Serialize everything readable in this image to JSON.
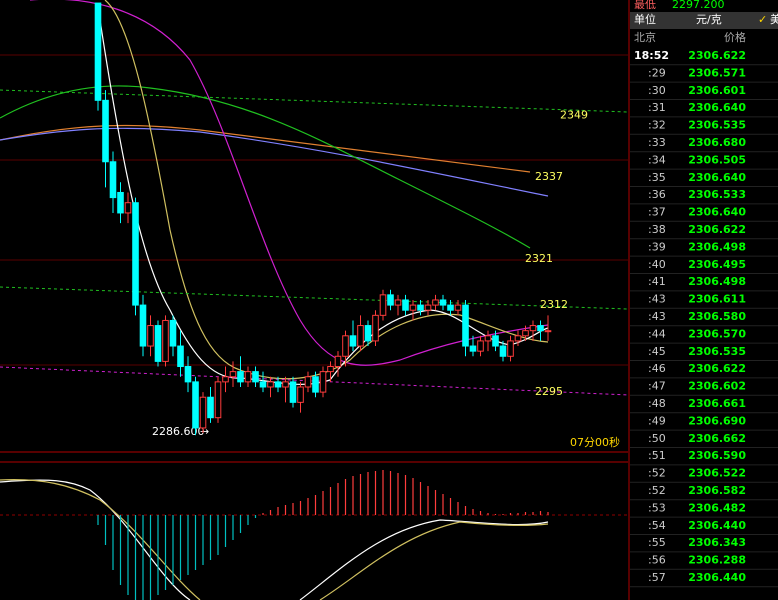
{
  "chart": {
    "ylim": [
      2283.3,
      2371.6
    ],
    "levels": [
      2349,
      2337,
      2321,
      2312,
      2295
    ],
    "low_label": {
      "value": 2286.6,
      "label": "2286.600"
    },
    "timer": "07分00秒",
    "candles": [
      {
        "o": 2371,
        "h": 2371,
        "l": 2350,
        "c": 2352
      },
      {
        "o": 2352,
        "h": 2354,
        "l": 2335,
        "c": 2340
      },
      {
        "o": 2340,
        "h": 2342,
        "l": 2330,
        "c": 2333
      },
      {
        "o": 2334,
        "h": 2336,
        "l": 2328,
        "c": 2330
      },
      {
        "o": 2330,
        "h": 2334,
        "l": 2328,
        "c": 2332
      },
      {
        "o": 2332,
        "h": 2333,
        "l": 2310,
        "c": 2312
      },
      {
        "o": 2312,
        "h": 2314,
        "l": 2302,
        "c": 2304
      },
      {
        "o": 2304,
        "h": 2310,
        "l": 2302,
        "c": 2308
      },
      {
        "o": 2308,
        "h": 2309,
        "l": 2300,
        "c": 2301
      },
      {
        "o": 2301,
        "h": 2310,
        "l": 2300,
        "c": 2309
      },
      {
        "o": 2309,
        "h": 2310,
        "l": 2302,
        "c": 2304
      },
      {
        "o": 2304,
        "h": 2307,
        "l": 2298,
        "c": 2300
      },
      {
        "o": 2300,
        "h": 2302,
        "l": 2295,
        "c": 2297
      },
      {
        "o": 2297,
        "h": 2298,
        "l": 2286.6,
        "c": 2288
      },
      {
        "o": 2288,
        "h": 2295,
        "l": 2287,
        "c": 2294
      },
      {
        "o": 2294,
        "h": 2296,
        "l": 2289,
        "c": 2290
      },
      {
        "o": 2290,
        "h": 2298,
        "l": 2289,
        "c": 2297
      },
      {
        "o": 2297,
        "h": 2300,
        "l": 2295,
        "c": 2298
      },
      {
        "o": 2298,
        "h": 2301,
        "l": 2296,
        "c": 2299
      },
      {
        "o": 2299,
        "h": 2302,
        "l": 2296,
        "c": 2297
      },
      {
        "o": 2297,
        "h": 2300,
        "l": 2296,
        "c": 2299
      },
      {
        "o": 2299,
        "h": 2300,
        "l": 2296,
        "c": 2297
      },
      {
        "o": 2297,
        "h": 2299,
        "l": 2295,
        "c": 2296
      },
      {
        "o": 2296,
        "h": 2298,
        "l": 2294,
        "c": 2297
      },
      {
        "o": 2297,
        "h": 2298,
        "l": 2295,
        "c": 2296
      },
      {
        "o": 2296,
        "h": 2298,
        "l": 2293,
        "c": 2297
      },
      {
        "o": 2297,
        "h": 2298,
        "l": 2292,
        "c": 2293
      },
      {
        "o": 2293,
        "h": 2297,
        "l": 2291,
        "c": 2296
      },
      {
        "o": 2296,
        "h": 2299,
        "l": 2295,
        "c": 2298
      },
      {
        "o": 2298,
        "h": 2299,
        "l": 2294,
        "c": 2295
      },
      {
        "o": 2295,
        "h": 2300,
        "l": 2294,
        "c": 2299
      },
      {
        "o": 2299,
        "h": 2301,
        "l": 2297,
        "c": 2300
      },
      {
        "o": 2300,
        "h": 2303,
        "l": 2298,
        "c": 2302
      },
      {
        "o": 2302,
        "h": 2307,
        "l": 2300,
        "c": 2306
      },
      {
        "o": 2306,
        "h": 2309,
        "l": 2303,
        "c": 2304
      },
      {
        "o": 2304,
        "h": 2310,
        "l": 2303,
        "c": 2308
      },
      {
        "o": 2308,
        "h": 2309,
        "l": 2304,
        "c": 2305
      },
      {
        "o": 2305,
        "h": 2311,
        "l": 2304,
        "c": 2310
      },
      {
        "o": 2310,
        "h": 2315,
        "l": 2309,
        "c": 2314
      },
      {
        "o": 2314,
        "h": 2315,
        "l": 2311,
        "c": 2312
      },
      {
        "o": 2312,
        "h": 2314,
        "l": 2310,
        "c": 2313
      },
      {
        "o": 2313,
        "h": 2314,
        "l": 2310,
        "c": 2311
      },
      {
        "o": 2311,
        "h": 2313,
        "l": 2309,
        "c": 2312
      },
      {
        "o": 2312,
        "h": 2313,
        "l": 2310,
        "c": 2311
      },
      {
        "o": 2311,
        "h": 2313,
        "l": 2310,
        "c": 2312
      },
      {
        "o": 2312,
        "h": 2314,
        "l": 2311,
        "c": 2313
      },
      {
        "o": 2313,
        "h": 2314,
        "l": 2311,
        "c": 2312
      },
      {
        "o": 2312,
        "h": 2313,
        "l": 2310,
        "c": 2311
      },
      {
        "o": 2311,
        "h": 2313,
        "l": 2310,
        "c": 2312
      },
      {
        "o": 2312,
        "h": 2313,
        "l": 2302,
        "c": 2304
      },
      {
        "o": 2304,
        "h": 2306,
        "l": 2302,
        "c": 2303
      },
      {
        "o": 2303,
        "h": 2306,
        "l": 2302,
        "c": 2305
      },
      {
        "o": 2305,
        "h": 2307,
        "l": 2303,
        "c": 2306
      },
      {
        "o": 2306,
        "h": 2307,
        "l": 2303,
        "c": 2304
      },
      {
        "o": 2304,
        "h": 2305,
        "l": 2301,
        "c": 2302
      },
      {
        "o": 2302,
        "h": 2306,
        "l": 2301,
        "c": 2305
      },
      {
        "o": 2305,
        "h": 2307,
        "l": 2304,
        "c": 2306
      },
      {
        "o": 2306,
        "h": 2308,
        "l": 2305,
        "c": 2307
      },
      {
        "o": 2307,
        "h": 2309,
        "l": 2305,
        "c": 2308
      },
      {
        "o": 2308,
        "h": 2309,
        "l": 2305,
        "c": 2307
      },
      {
        "o": 2307,
        "h": 2310,
        "l": 2305,
        "c": 2307
      }
    ],
    "macd": {
      "ylim": [
        -85,
        60
      ],
      "values": [
        -10,
        -30,
        -55,
        -70,
        -80,
        -85,
        -88,
        -85,
        -80,
        -75,
        -70,
        -65,
        -60,
        -55,
        -50,
        -45,
        -40,
        -32,
        -25,
        -18,
        -10,
        -3,
        2,
        5,
        8,
        10,
        12,
        14,
        17,
        20,
        24,
        28,
        32,
        36,
        39,
        41,
        43,
        44,
        45,
        44,
        42,
        40,
        37,
        33,
        29,
        25,
        21,
        17,
        13,
        9,
        6,
        4,
        2,
        1,
        1,
        2,
        2,
        3,
        3,
        4,
        3
      ]
    }
  },
  "panel": {
    "low_label": "最低",
    "low_value": "2297.200",
    "unit_label": "单位",
    "unit": "元/克",
    "usd": "美",
    "place": "北京",
    "price_header": "价格",
    "rows": [
      {
        "time": "18:52",
        "price": "2306.622"
      },
      {
        "time": ":29",
        "price": "2306.571"
      },
      {
        "time": ":30",
        "price": "2306.601"
      },
      {
        "time": ":31",
        "price": "2306.640"
      },
      {
        "time": ":32",
        "price": "2306.535"
      },
      {
        "time": ":33",
        "price": "2306.680"
      },
      {
        "time": ":34",
        "price": "2306.505"
      },
      {
        "time": ":35",
        "price": "2306.640"
      },
      {
        "time": ":36",
        "price": "2306.533"
      },
      {
        "time": ":37",
        "price": "2306.640"
      },
      {
        "time": ":38",
        "price": "2306.622"
      },
      {
        "time": ":39",
        "price": "2306.498"
      },
      {
        "time": ":40",
        "price": "2306.495"
      },
      {
        "time": ":41",
        "price": "2306.498"
      },
      {
        "time": ":43",
        "price": "2306.611"
      },
      {
        "time": ":43",
        "price": "2306.580"
      },
      {
        "time": ":44",
        "price": "2306.570"
      },
      {
        "time": ":45",
        "price": "2306.535"
      },
      {
        "time": ":46",
        "price": "2306.622"
      },
      {
        "time": ":47",
        "price": "2306.602"
      },
      {
        "time": ":48",
        "price": "2306.661"
      },
      {
        "time": ":49",
        "price": "2306.690"
      },
      {
        "time": ":50",
        "price": "2306.662"
      },
      {
        "time": ":51",
        "price": "2306.590"
      },
      {
        "time": ":52",
        "price": "2306.522"
      },
      {
        "time": ":52",
        "price": "2306.582"
      },
      {
        "time": ":53",
        "price": "2306.482"
      },
      {
        "time": ":54",
        "price": "2306.440"
      },
      {
        "time": ":55",
        "price": "2306.343"
      },
      {
        "time": ":56",
        "price": "2306.288"
      },
      {
        "time": ":57",
        "price": "2306.440"
      }
    ]
  }
}
